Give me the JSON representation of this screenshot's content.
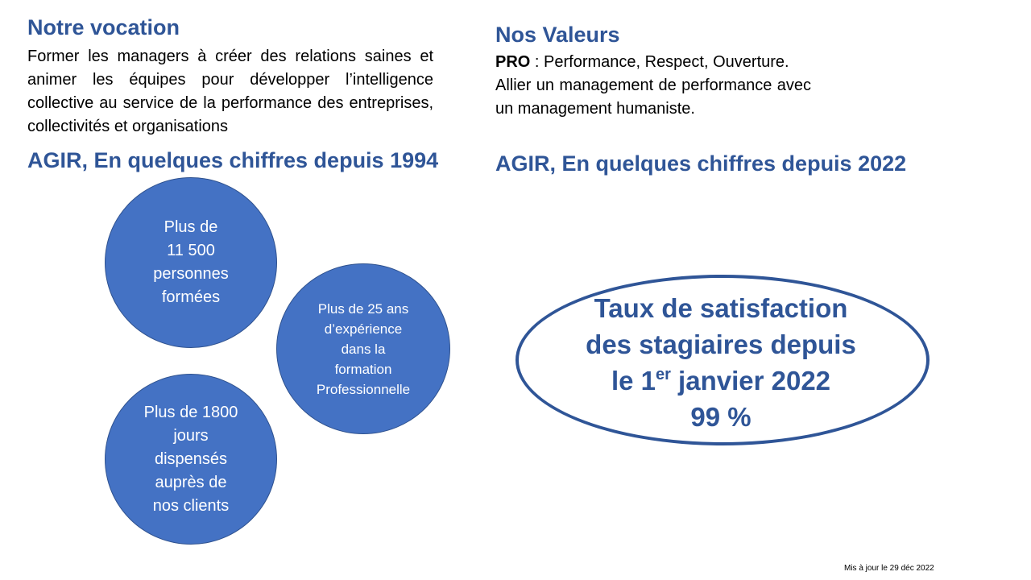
{
  "vocation": {
    "title": "Notre vocation",
    "text": "Former les managers à créer des relations saines et animer les équipes pour développer l’intelligence collective au service de la performance des entreprises, collectivités et organisations"
  },
  "valeurs": {
    "title": "Nos Valeurs",
    "pro_label": "PRO",
    "pro_text": " : Performance, Respect, Ouverture.",
    "text": "Allier un management de performance avec un management humaniste."
  },
  "chiffres_1994": {
    "title": "AGIR, En quelques chiffres depuis 1994",
    "dot": ".",
    "circles": [
      "Plus de\n11 500\npersonnes\nformées",
      "Plus de 25 ans\nd’expérience\ndans la\nformation\nProfessionnelle",
      "Plus de 1800\njours\ndispensés\nauprès de\nnos clients"
    ]
  },
  "chiffres_2022": {
    "title": "AGIR, En quelques chiffres depuis 2022",
    "satisfaction_line1": "Taux de satisfaction",
    "satisfaction_line2": "des stagiaires depuis",
    "satisfaction_line3_pre": "le 1",
    "satisfaction_line3_sup": "er",
    "satisfaction_line3_post": " janvier 2022",
    "satisfaction_value": "99 %"
  },
  "footer": {
    "updated": "Mis à jour le 29 déc 2022"
  },
  "colors": {
    "heading": "#2F5597",
    "circle_fill": "#4472C4",
    "circle_border": "#2F528F",
    "ellipse_border": "#2F5597"
  }
}
